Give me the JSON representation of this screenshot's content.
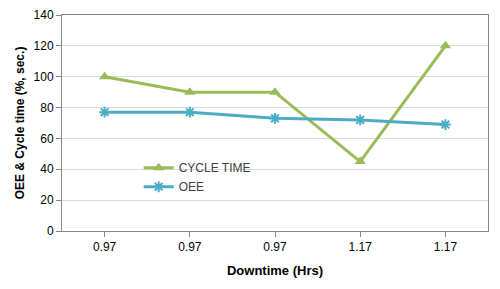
{
  "chart_data": {
    "type": "line",
    "x_label": "Downtime (Hrs)",
    "y_label": "OEE & Cycle time (%, sec.)",
    "categories": [
      "0.97",
      "0.97",
      "0.97",
      "1.17",
      "1.17"
    ],
    "series": [
      {
        "name": "CYCLE TIME",
        "color": "#9bbb59",
        "marker": "triangle-up",
        "line_style": "solid",
        "values": [
          100,
          90,
          90,
          45,
          120
        ]
      },
      {
        "name": "OEE",
        "color": "#4bacc6",
        "marker": "asterisk",
        "line_style": "solid",
        "values": [
          77,
          77,
          73,
          72,
          69
        ]
      }
    ],
    "ylim": [
      0,
      140
    ],
    "yticks": [
      0,
      20,
      40,
      60,
      80,
      100,
      120,
      140
    ],
    "grid": true,
    "legend": "center"
  }
}
